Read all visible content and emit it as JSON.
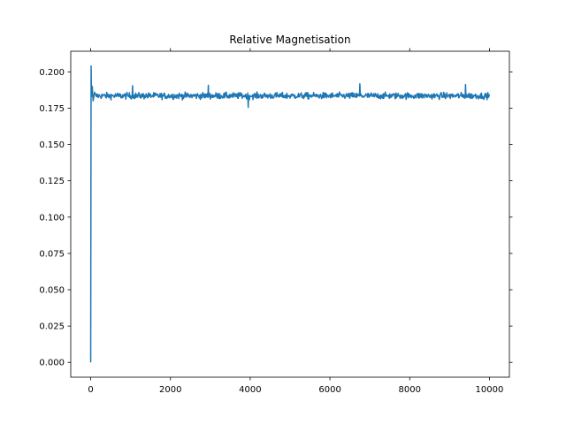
{
  "chart_data": {
    "type": "line",
    "title": "Relative Magnetisation",
    "xlabel": "",
    "ylabel": "",
    "xlim": [
      -500,
      10500
    ],
    "ylim": [
      -0.0102,
      0.2142
    ],
    "x_ticks": [
      0,
      2000,
      4000,
      6000,
      8000,
      10000
    ],
    "x_tick_labels": [
      "0",
      "2000",
      "4000",
      "6000",
      "8000",
      "10000"
    ],
    "y_ticks": [
      0.0,
      0.025,
      0.05,
      0.075,
      0.1,
      0.125,
      0.15,
      0.175,
      0.2
    ],
    "y_tick_labels": [
      "0.000",
      "0.025",
      "0.050",
      "0.075",
      "0.100",
      "0.125",
      "0.150",
      "0.175",
      "0.200"
    ],
    "grid": false,
    "ticks_on_all_sides": true,
    "series": [
      {
        "color": "#1f77b4",
        "x_range": [
          0,
          10000
        ],
        "points": [
          [
            0,
            0.0
          ],
          [
            10,
            0.204
          ],
          [
            20,
            0.183
          ],
          [
            40,
            0.19
          ],
          [
            60,
            0.18
          ],
          [
            100,
            0.186
          ]
        ],
        "steady_state_mean": 0.1835,
        "steady_state_band": [
          0.176,
          0.191
        ],
        "spikes": [
          [
            1050,
            0.1905
          ],
          [
            2950,
            0.1908
          ],
          [
            3950,
            0.1755
          ],
          [
            6750,
            0.1918
          ],
          [
            9400,
            0.1913
          ]
        ]
      }
    ]
  }
}
